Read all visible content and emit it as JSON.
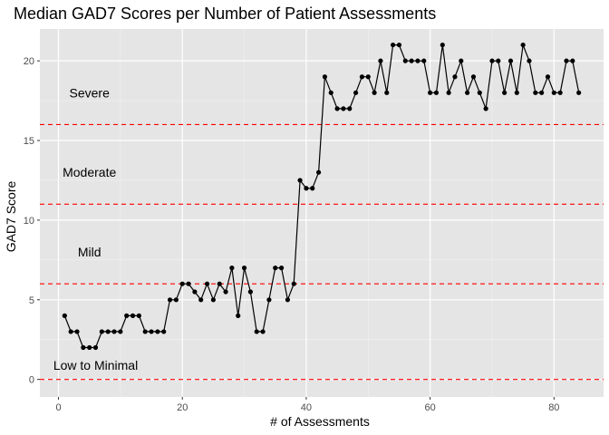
{
  "chart_data": {
    "type": "line",
    "title": "Median GAD7 Scores per Number of Patient Assessments",
    "xlabel": "# of Assessments",
    "ylabel": "GAD7 Score",
    "xlim": [
      -3,
      88
    ],
    "ylim": [
      -1.1,
      22
    ],
    "xticks": [
      0,
      20,
      40,
      60,
      80
    ],
    "yticks": [
      0,
      5,
      10,
      15,
      20
    ],
    "grid": true,
    "background": "#e5e5e5",
    "line_color": "#000000",
    "threshold_color": "#ff0000",
    "thresholds": [
      0,
      6,
      11,
      16
    ],
    "annotations": [
      {
        "text": "Severe",
        "x": 5,
        "y": 18
      },
      {
        "text": "Moderate",
        "x": 5,
        "y": 13
      },
      {
        "text": "Mild",
        "x": 5,
        "y": 8
      },
      {
        "text": "Low to Minimal",
        "x": 6,
        "y": 0.9
      }
    ],
    "x": [
      1,
      2,
      3,
      4,
      5,
      6,
      7,
      8,
      9,
      10,
      11,
      12,
      13,
      14,
      15,
      16,
      17,
      18,
      19,
      20,
      21,
      22,
      23,
      24,
      25,
      26,
      27,
      28,
      29,
      30,
      31,
      32,
      33,
      34,
      35,
      36,
      37,
      38,
      39,
      40,
      41,
      42,
      43,
      44,
      45,
      46,
      47,
      48,
      49,
      50,
      51,
      52,
      53,
      54,
      55,
      56,
      57,
      58,
      59,
      60,
      61,
      62,
      63,
      64,
      65,
      66,
      67,
      68,
      69,
      70,
      71,
      72,
      73,
      74,
      75,
      76,
      77,
      78,
      79,
      80,
      81,
      82,
      83,
      84
    ],
    "y": [
      4,
      3,
      3,
      2,
      2,
      2,
      3,
      3,
      3,
      3,
      4,
      4,
      4,
      3,
      3,
      3,
      3,
      5,
      5,
      6,
      6,
      5.5,
      5,
      6,
      5,
      6,
      5.5,
      7,
      4,
      7,
      5.5,
      3,
      3,
      5,
      7,
      7,
      5,
      6,
      12.5,
      12,
      12,
      13,
      19,
      18,
      17,
      17,
      17,
      18,
      19,
      19,
      18,
      20,
      18,
      21,
      21,
      20,
      20,
      20,
      20,
      18,
      18,
      21,
      18,
      19,
      20,
      18,
      19,
      18,
      17,
      20,
      20,
      18,
      20,
      18,
      21,
      20,
      18,
      18,
      19,
      18,
      18,
      20,
      20,
      18
    ]
  }
}
